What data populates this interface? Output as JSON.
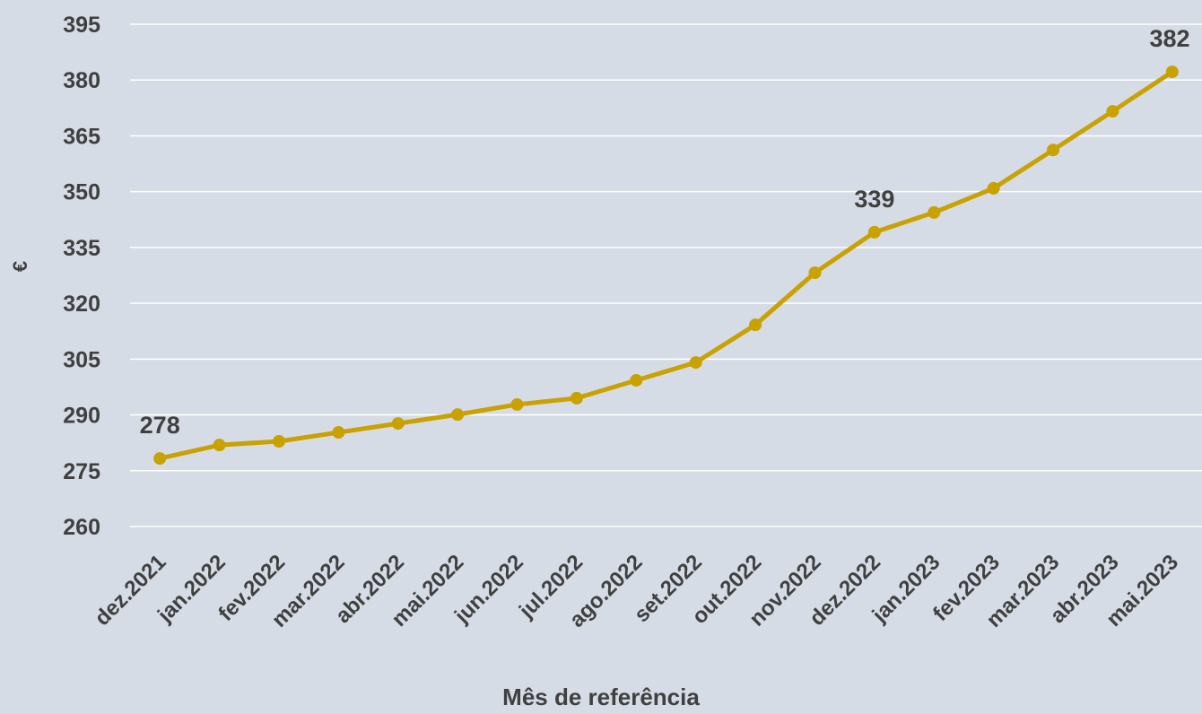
{
  "chart_data": {
    "type": "line",
    "x_label": "Mês de referência",
    "y_label": "€",
    "categories": [
      "dez.2021",
      "jan.2022",
      "fev.2022",
      "mar.2022",
      "abr.2022",
      "mai.2022",
      "jun.2022",
      "jul.2022",
      "ago.2022",
      "set.2022",
      "out.2022",
      "nov.2022",
      "dez.2022",
      "jan.2023",
      "fev.2023",
      "mar.2023",
      "abr.2023",
      "mai.2023"
    ],
    "series": [
      {
        "name": "€",
        "color": "#c9a100",
        "values": [
          278.3,
          281.9,
          282.9,
          285.3,
          287.7,
          290.1,
          292.8,
          294.5,
          299.3,
          304.1,
          314.2,
          328.2,
          339.1,
          344.4,
          350.9,
          361.2,
          371.6,
          382.2
        ],
        "value_labels": [
          "278",
          null,
          null,
          null,
          null,
          null,
          null,
          null,
          null,
          null,
          null,
          null,
          "339",
          null,
          null,
          null,
          null,
          "382"
        ]
      }
    ],
    "ylim": [
      260,
      395
    ],
    "yticks": [
      260,
      275,
      290,
      305,
      320,
      335,
      350,
      365,
      380,
      395
    ],
    "grid": true
  }
}
